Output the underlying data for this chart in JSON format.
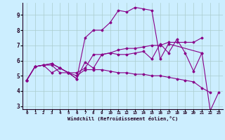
{
  "xlabel": "Windchill (Refroidissement éolien,°C)",
  "background_color": "#cceeff",
  "grid_color": "#aacccc",
  "line_color": "#880088",
  "xlim": [
    -0.5,
    23.5
  ],
  "ylim": [
    2.8,
    9.8
  ],
  "yticks": [
    3,
    4,
    5,
    6,
    7,
    8,
    9
  ],
  "xticks": [
    0,
    1,
    2,
    3,
    4,
    5,
    6,
    7,
    8,
    9,
    10,
    11,
    12,
    13,
    14,
    15,
    16,
    17,
    18,
    19,
    20,
    21,
    22,
    23
  ],
  "lines": [
    {
      "x": [
        0,
        1,
        2,
        3,
        4,
        5,
        6,
        7,
        8,
        9,
        10,
        11,
        12,
        13,
        14,
        15,
        16,
        17,
        18,
        19,
        20,
        21,
        22
      ],
      "y": [
        4.7,
        5.6,
        5.7,
        5.7,
        5.2,
        5.2,
        5.0,
        5.4,
        5.4,
        5.4,
        5.3,
        5.2,
        5.2,
        5.1,
        5.1,
        5.0,
        5.0,
        4.9,
        4.8,
        4.7,
        4.6,
        4.2,
        3.9
      ]
    },
    {
      "x": [
        0,
        1,
        2,
        3,
        4,
        5,
        6,
        7,
        8,
        9,
        10,
        11,
        12,
        13,
        14,
        15,
        16,
        17,
        18,
        19,
        20,
        21
      ],
      "y": [
        4.7,
        5.6,
        5.7,
        5.8,
        5.5,
        5.2,
        4.8,
        5.9,
        5.5,
        6.4,
        6.5,
        6.4,
        6.4,
        6.5,
        6.6,
        6.1,
        7.1,
        6.5,
        7.4,
        6.5,
        5.3,
        6.5
      ]
    },
    {
      "x": [
        0,
        1,
        2,
        3,
        4,
        5,
        6,
        7,
        8,
        9,
        10,
        11,
        12,
        13,
        14,
        15,
        16,
        17,
        21,
        22,
        23
      ],
      "y": [
        4.7,
        5.6,
        5.7,
        5.8,
        5.5,
        5.2,
        4.8,
        7.5,
        8.0,
        8.0,
        8.5,
        9.3,
        9.2,
        9.5,
        9.4,
        9.3,
        6.1,
        7.1,
        6.5,
        2.7,
        3.9
      ]
    },
    {
      "x": [
        0,
        1,
        2,
        3,
        4,
        5,
        6,
        7,
        8,
        9,
        10,
        11,
        12,
        13,
        14,
        15,
        16,
        17,
        18,
        19,
        20,
        21
      ],
      "y": [
        4.7,
        5.6,
        5.7,
        5.2,
        5.5,
        5.2,
        5.2,
        5.5,
        6.4,
        6.4,
        6.5,
        6.7,
        6.8,
        6.8,
        6.9,
        7.0,
        7.0,
        7.2,
        7.2,
        7.2,
        7.2,
        7.5
      ]
    }
  ]
}
